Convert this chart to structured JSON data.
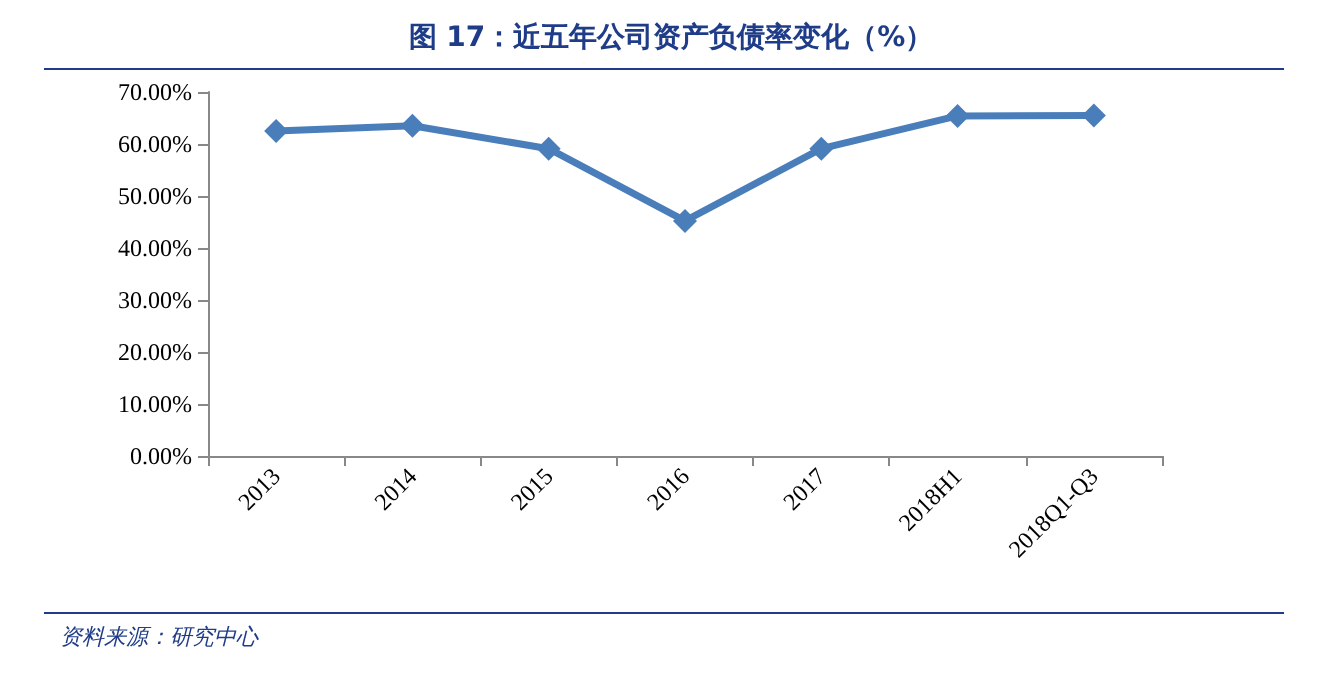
{
  "chart_data": {
    "type": "line",
    "title": "图 17：近五年公司资产负债率变化（%）",
    "annotations": [
      "资料来源：研究中心"
    ],
    "categories": [
      "2013",
      "2014",
      "2015",
      "2016",
      "2017",
      "2018H1",
      "2018Q1-Q3"
    ],
    "series": [
      {
        "color": "#4a7ebb",
        "values": [
          62.5,
          63.5,
          59.1,
          45.2,
          59.1,
          65.4,
          65.5
        ]
      }
    ],
    "ylim": [
      0,
      70
    ],
    "yticks": [
      {
        "value": 0,
        "label": "0.00%"
      },
      {
        "value": 10,
        "label": "10.00%"
      },
      {
        "value": 20,
        "label": "20.00%"
      },
      {
        "value": 30,
        "label": "30.00%"
      },
      {
        "value": 40,
        "label": "40.00%"
      },
      {
        "value": 50,
        "label": "50.00%"
      },
      {
        "value": 60,
        "label": "60.00%"
      },
      {
        "value": 70,
        "label": "70.00%"
      }
    ],
    "grid": false,
    "marker": "diamond",
    "line_style": "solid"
  }
}
